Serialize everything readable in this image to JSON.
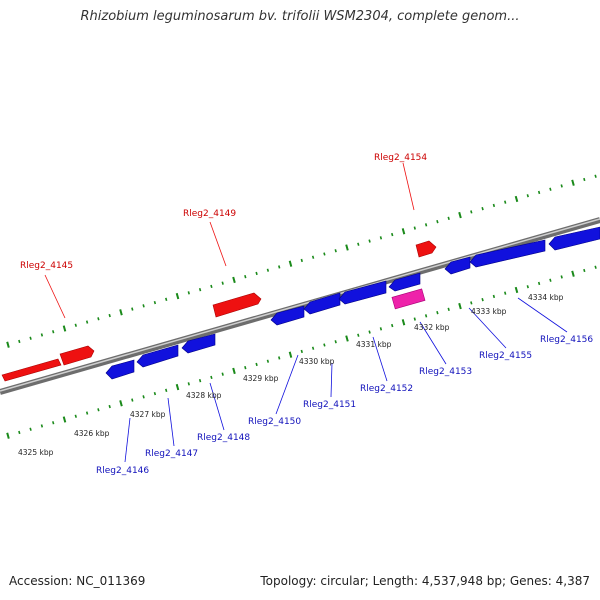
{
  "header": {
    "title": "Rhizobium leguminosarum bv. trifolii WSM2304, complete genom..."
  },
  "footer": {
    "accession": "Accession: NC_011369",
    "summary": "Topology: circular; Length: 4,537,948 bp; Genes: 4,387"
  },
  "colors": {
    "forward": "#ee1111",
    "reverse": "#1111dd",
    "highlight": "#ee22aa",
    "backbone": "#888888",
    "tick": "#1a8a1a"
  },
  "scale_labels": [
    "4325 kbp",
    "4326 kbp",
    "4327 kbp",
    "4328 kbp",
    "4329 kbp",
    "4330 kbp",
    "4331 kbp",
    "4332 kbp",
    "4333 kbp",
    "4334 kbp"
  ],
  "genes_forward": [
    {
      "label": "Rleg2_4145"
    },
    {
      "label": "Rleg2_4149"
    },
    {
      "label": "Rleg2_4154"
    }
  ],
  "genes_reverse": [
    {
      "label": "Rleg2_4146"
    },
    {
      "label": "Rleg2_4147"
    },
    {
      "label": "Rleg2_4148"
    },
    {
      "label": "Rleg2_4150"
    },
    {
      "label": "Rleg2_4151"
    },
    {
      "label": "Rleg2_4152"
    },
    {
      "label": "Rleg2_4153"
    },
    {
      "label": "Rleg2_4155"
    },
    {
      "label": "Rleg2_4156"
    }
  ]
}
